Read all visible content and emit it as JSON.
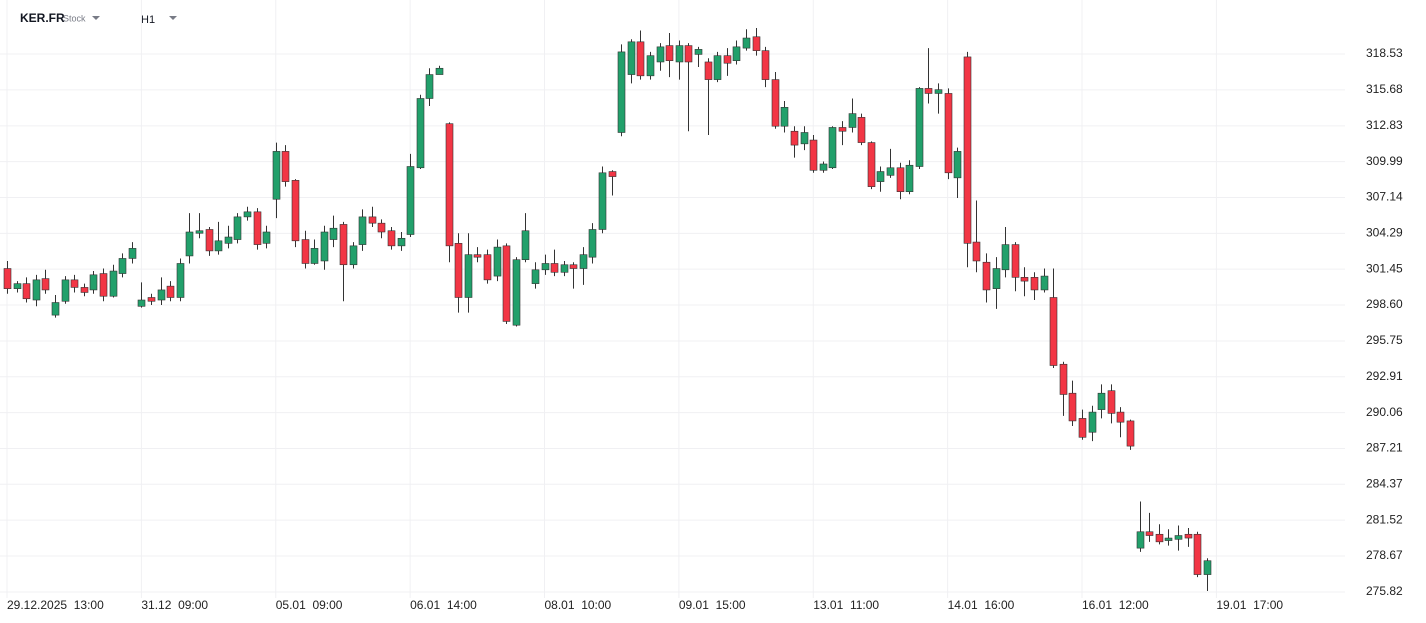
{
  "chart_data": {
    "type": "candlestick",
    "title": "KER.FR",
    "subtitle": "Stock",
    "timeframe": "H1",
    "up_color": "#22a06b",
    "down_color": "#f23645",
    "grid": true,
    "ylim": [
      275.34,
      322.82
    ],
    "yticks": [
      318.53,
      315.68,
      312.83,
      309.99,
      307.14,
      304.29,
      301.45,
      {
        "value": 298.6,
        "label": "298.60"
      },
      295.75,
      292.91,
      290.06,
      287.21,
      284.37,
      281.52,
      278.67,
      275.82
    ],
    "xlim": [
      -0.73,
      139.4
    ],
    "xticks": [
      {
        "value": 0,
        "label": "29.12.2025  13:00"
      },
      {
        "value": 14,
        "label": "31.12  09:00"
      },
      {
        "value": 28,
        "label": "05.01  09:00"
      },
      {
        "value": 42,
        "label": "06.01  14:00"
      },
      {
        "value": 56,
        "label": "08.01  10:00"
      },
      {
        "value": 70,
        "label": "09.01  15:00"
      },
      {
        "value": 84,
        "label": "13.01  11:00"
      },
      {
        "value": 98,
        "label": "14.01  16:00"
      },
      {
        "value": 112,
        "label": "16.01  12:00"
      },
      {
        "value": 126,
        "label": "19.01  17:00"
      }
    ],
    "open": [
      301.5,
      299.9,
      300.3,
      299.0,
      300.7,
      297.8,
      298.9,
      300.6,
      300.0,
      299.8,
      301.1,
      299.3,
      301.1,
      302.3,
      298.5,
      299.2,
      299.0,
      300.1,
      299.2,
      302.5,
      304.3,
      304.6,
      302.9,
      303.5,
      303.8,
      305.6,
      306.0,
      303.5,
      307.0,
      310.8,
      308.5,
      303.8,
      301.9,
      302.1,
      303.8,
      305.0,
      301.8,
      303.4,
      305.6,
      305.1,
      304.5,
      303.3,
      304.2,
      309.5,
      315.0,
      316.9,
      313.0,
      303.5,
      299.2,
      302.6,
      302.6,
      300.9,
      303.3,
      297.0,
      302.2,
      300.3,
      301.4,
      301.9,
      301.2,
      301.8,
      301.5,
      302.4,
      304.6,
      309.2,
      312.3,
      316.9,
      319.5,
      316.8,
      317.9,
      319.2,
      317.9,
      319.2,
      318.5,
      317.9,
      316.5,
      318.4,
      318.0,
      319.0,
      319.9,
      318.8,
      316.5,
      312.8,
      312.4,
      311.4,
      311.7,
      309.3,
      309.5,
      312.7,
      312.7,
      313.5,
      311.5,
      308.4,
      308.9,
      309.5,
      307.6,
      309.6,
      315.8,
      315.4,
      315.4,
      308.7,
      318.3,
      303.6,
      302.0,
      299.9,
      301.4,
      303.4,
      300.8,
      300.8,
      299.8,
      299.2,
      293.9,
      291.6,
      289.6,
      288.5,
      290.3,
      291.8,
      290.1,
      289.4,
      279.3,
      280.6,
      280.4,
      279.9,
      280.0,
      280.4,
      280.4,
      277.2
    ],
    "high": [
      302.1,
      300.5,
      300.8,
      301.0,
      301.4,
      299.4,
      300.9,
      301.0,
      300.3,
      301.3,
      301.5,
      301.8,
      302.7,
      303.6,
      300.4,
      299.5,
      300.8,
      300.5,
      302.3,
      305.9,
      305.9,
      304.8,
      305.2,
      304.9,
      305.9,
      306.4,
      306.3,
      304.9,
      311.5,
      311.3,
      308.6,
      304.5,
      303.8,
      304.9,
      305.7,
      305.2,
      303.6,
      306.2,
      306.4,
      305.4,
      304.8,
      304.4,
      310.6,
      315.3,
      317.4,
      317.6,
      313.1,
      304.3,
      304.3,
      303.2,
      303.0,
      303.8,
      303.5,
      302.4,
      305.9,
      302.0,
      302.6,
      303.0,
      302.1,
      302.0,
      303.2,
      305.1,
      309.6,
      309.3,
      319.3,
      319.7,
      320.4,
      318.7,
      319.4,
      320.2,
      319.6,
      319.4,
      319.1,
      318.2,
      318.7,
      319.0,
      319.6,
      320.5,
      320.6,
      319.1,
      317.1,
      314.8,
      312.8,
      312.8,
      312.1,
      310.0,
      312.8,
      313.2,
      315.0,
      313.8,
      311.6,
      309.6,
      311.0,
      309.9,
      310.1,
      315.9,
      319.0,
      316.2,
      315.8,
      311.1,
      318.7,
      306.9,
      302.7,
      302.4,
      304.8,
      303.6,
      301.6,
      301.2,
      301.5,
      301.5,
      294.1,
      292.6,
      290.3,
      290.6,
      292.3,
      292.3,
      290.5,
      289.5,
      283.0,
      282.1,
      281.2,
      280.8,
      281.1,
      280.9,
      280.6,
      278.5
    ],
    "low": [
      299.5,
      299.6,
      298.8,
      298.5,
      299.5,
      297.6,
      298.7,
      299.6,
      299.3,
      299.5,
      298.9,
      299.2,
      300.8,
      301.9,
      298.4,
      298.6,
      298.6,
      298.9,
      298.9,
      301.9,
      303.9,
      302.5,
      302.6,
      303.1,
      303.5,
      305.3,
      303.0,
      303.1,
      305.5,
      308.0,
      303.2,
      301.5,
      301.8,
      301.4,
      303.2,
      298.9,
      301.5,
      302.9,
      304.8,
      303.9,
      303.0,
      302.9,
      304.0,
      309.4,
      314.4,
      316.9,
      302.0,
      298.0,
      298.0,
      302.0,
      300.3,
      300.5,
      297.1,
      296.9,
      302.0,
      299.9,
      301.0,
      300.9,
      300.9,
      299.9,
      300.2,
      301.9,
      304.3,
      307.3,
      312.0,
      316.2,
      316.5,
      316.5,
      317.2,
      316.7,
      316.5,
      312.4,
      317.5,
      312.1,
      316.3,
      316.8,
      317.7,
      318.8,
      318.4,
      315.9,
      312.6,
      312.3,
      310.3,
      310.9,
      309.1,
      309.1,
      309.4,
      311.3,
      312.3,
      311.3,
      307.8,
      307.6,
      308.7,
      307.0,
      307.4,
      309.4,
      314.6,
      313.8,
      308.6,
      307.1,
      301.6,
      301.2,
      298.8,
      298.3,
      300.8,
      299.7,
      299.3,
      299.0,
      299.6,
      293.6,
      289.8,
      289.0,
      287.9,
      287.8,
      289.6,
      289.2,
      288.1,
      287.1,
      279.0,
      279.8,
      279.6,
      279.5,
      279.1,
      279.4,
      277.0,
      275.9
    ],
    "close": [
      299.9,
      300.3,
      299.1,
      300.6,
      299.8,
      298.8,
      300.6,
      300.0,
      299.6,
      301.0,
      299.3,
      301.3,
      302.3,
      303.1,
      299.0,
      298.9,
      299.8,
      299.2,
      301.9,
      304.4,
      304.5,
      302.9,
      303.7,
      304.0,
      305.6,
      306.0,
      303.4,
      304.4,
      310.8,
      308.4,
      303.7,
      301.9,
      303.1,
      304.4,
      304.7,
      301.8,
      303.3,
      305.6,
      305.1,
      304.4,
      303.3,
      303.9,
      309.6,
      315.0,
      316.9,
      317.4,
      303.3,
      299.2,
      302.6,
      302.4,
      300.6,
      303.2,
      297.3,
      302.2,
      304.5,
      301.4,
      301.9,
      301.2,
      301.8,
      301.5,
      302.6,
      304.6,
      309.1,
      308.8,
      318.7,
      319.5,
      316.8,
      318.4,
      319.1,
      318.0,
      319.2,
      317.9,
      318.9,
      316.5,
      318.4,
      317.8,
      319.1,
      319.8,
      318.8,
      316.5,
      312.8,
      314.3,
      311.3,
      312.3,
      309.3,
      309.8,
      312.7,
      312.4,
      313.8,
      311.5,
      308.0,
      309.2,
      309.5,
      307.6,
      309.7,
      315.8,
      315.4,
      315.7,
      309.1,
      310.8,
      303.5,
      302.1,
      299.8,
      301.5,
      303.4,
      300.8,
      300.5,
      299.8,
      300.9,
      293.8,
      291.5,
      289.4,
      288.1,
      290.1,
      291.6,
      290.0,
      289.3,
      287.4,
      280.6,
      280.3,
      279.8,
      280.1,
      280.3,
      280.1,
      277.2,
      278.3
    ]
  }
}
